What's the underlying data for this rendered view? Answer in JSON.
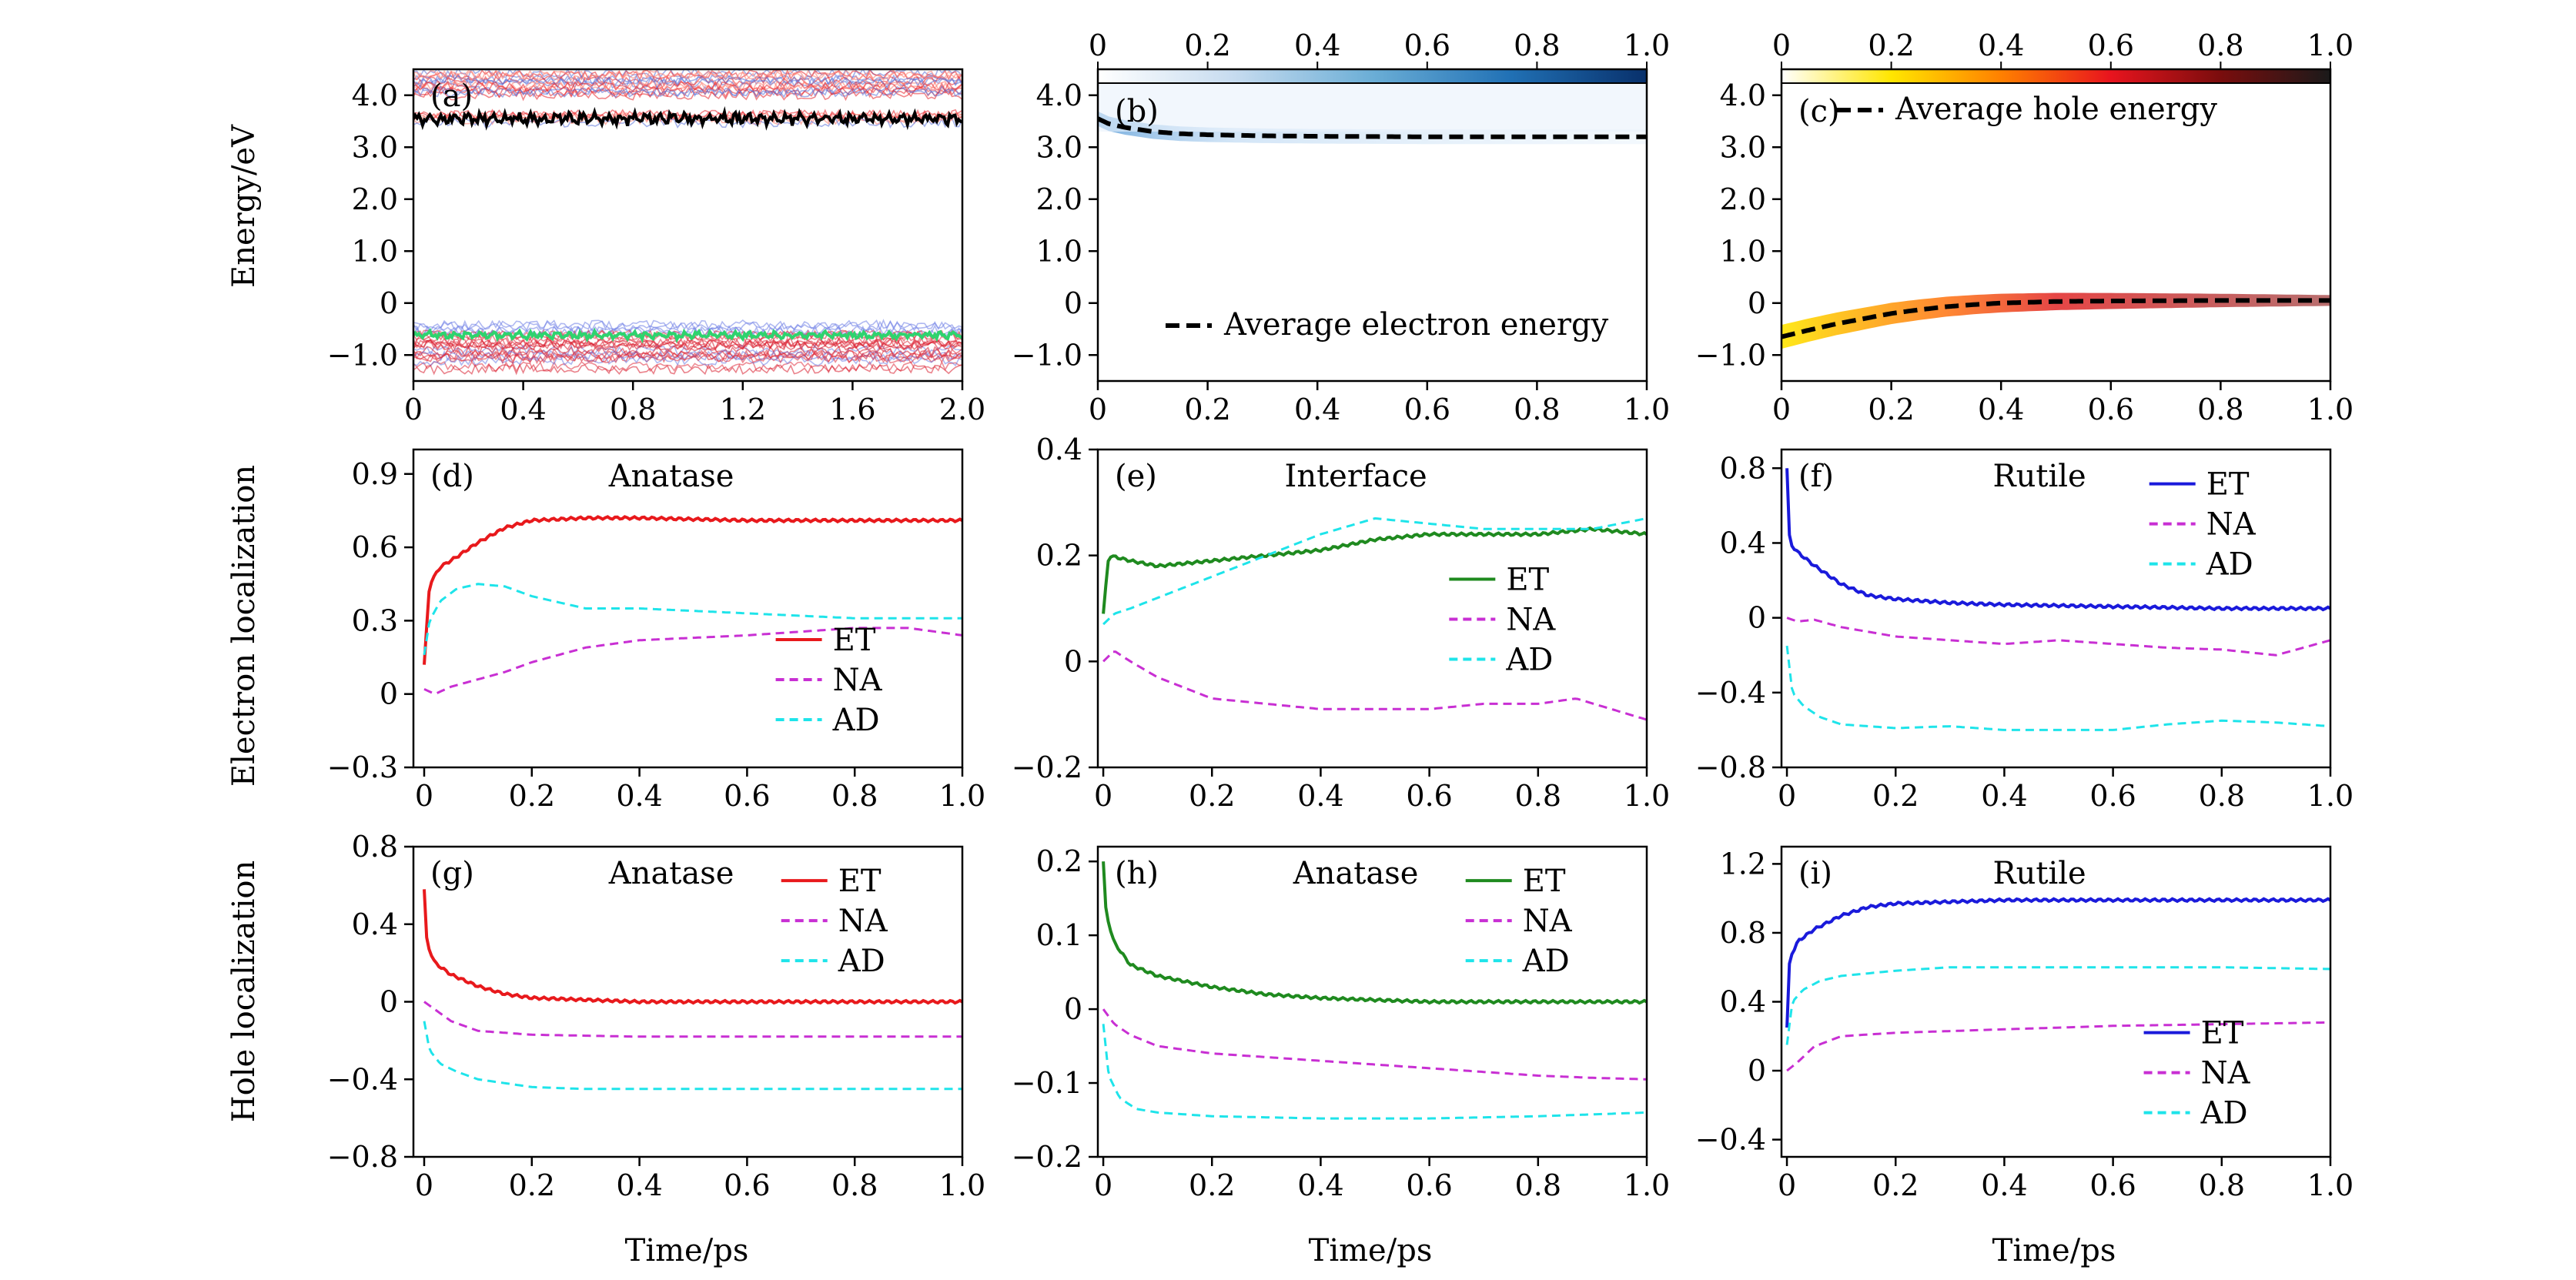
{
  "figure": {
    "y_labels": [
      "Energy/eV",
      "Electron localization",
      "Hole localization"
    ],
    "x_label": "Time/ps"
  },
  "chart_data": [
    {
      "id": "a",
      "type": "line",
      "panel_label": "(a)",
      "xlim": [
        0,
        2.0
      ],
      "ylim": [
        -1.5,
        4.5
      ],
      "xticks": [
        0,
        0.4,
        0.8,
        1.2,
        1.6,
        2.0
      ],
      "xtick_labels": [
        "0",
        "0.4",
        "0.8",
        "1.2",
        "1.6",
        "2.0"
      ],
      "yticks": [
        -1.0,
        0,
        1.0,
        2.0,
        3.0,
        4.0
      ],
      "ytick_labels": [
        "−1.0",
        "0",
        "1.0",
        "2.0",
        "3.0",
        "4.0"
      ],
      "band_groups": [
        {
          "name": "conduction states",
          "center": 3.95,
          "spread": 0.5,
          "colors": [
            "#e8242c",
            "#ff7a6e",
            "#5b73d9"
          ]
        },
        {
          "name": "valence states",
          "center": -0.9,
          "spread": 0.55,
          "colors": [
            "#d81e2e",
            "#6f7fe6",
            "#e03040"
          ]
        }
      ],
      "series": [
        {
          "role": "lumo",
          "color": "#000000",
          "mean": 3.55,
          "amplitude": 0.15
        },
        {
          "role": "homo",
          "color": "#2ed36e",
          "mean": -0.62,
          "amplitude": 0.09
        }
      ]
    },
    {
      "id": "b",
      "type": "line",
      "panel_label": "(b)",
      "xlim": [
        0,
        1.0
      ],
      "ylim": [
        -1.5,
        4.5
      ],
      "xticks": [
        0,
        0.2,
        0.4,
        0.6,
        0.8,
        1.0
      ],
      "xtick_labels": [
        "0",
        "0.2",
        "0.4",
        "0.6",
        "0.8",
        "1.0"
      ],
      "yticks": [
        -1.0,
        0,
        1.0,
        2.0,
        3.0,
        4.0
      ],
      "ytick_labels": [
        "−1.0",
        "0",
        "1.0",
        "2.0",
        "3.0",
        "4.0"
      ],
      "colorbar": {
        "ticks": [
          0,
          0.2,
          0.4,
          0.6,
          0.8,
          1.0
        ],
        "tick_labels": [
          "0",
          "0.2",
          "0.4",
          "0.6",
          "0.8",
          "1.0"
        ],
        "colors": [
          "#ffffff",
          "#c6dbef",
          "#6baed6",
          "#2171b5",
          "#08306b"
        ]
      },
      "density_color": "#7fb3df",
      "legend": {
        "position": "lower-right",
        "entries": [
          {
            "label": "Average electron energy",
            "color": "#000000",
            "dash": true
          }
        ]
      },
      "series": [
        {
          "name": "Average electron energy",
          "color": "#000000",
          "dash": true,
          "x": [
            0,
            0.02,
            0.05,
            0.1,
            0.15,
            0.2,
            0.3,
            0.4,
            0.6,
            0.8,
            1.0
          ],
          "y": [
            3.55,
            3.45,
            3.38,
            3.3,
            3.26,
            3.24,
            3.22,
            3.21,
            3.2,
            3.2,
            3.2
          ]
        }
      ]
    },
    {
      "id": "c",
      "type": "line",
      "panel_label": "(c)",
      "xlim": [
        0,
        1.0
      ],
      "ylim": [
        -1.5,
        4.5
      ],
      "xticks": [
        0,
        0.2,
        0.4,
        0.6,
        0.8,
        1.0
      ],
      "xtick_labels": [
        "0",
        "0.2",
        "0.4",
        "0.6",
        "0.8",
        "1.0"
      ],
      "yticks": [
        -1.0,
        0,
        1.0,
        2.0,
        3.0,
        4.0
      ],
      "ytick_labels": [
        "−1.0",
        "0",
        "1.0",
        "2.0",
        "3.0",
        "4.0"
      ],
      "colorbar": {
        "ticks": [
          0,
          0.2,
          0.4,
          0.6,
          0.8,
          1.0
        ],
        "tick_labels": [
          "0",
          "0.2",
          "0.4",
          "0.6",
          "0.8",
          "1.0"
        ],
        "colors": [
          "#ffffff",
          "#ffe600",
          "#ff8000",
          "#e8141e",
          "#7a0d0d",
          "#1a1a1a"
        ]
      },
      "legend": {
        "position": "upper-right",
        "entries": [
          {
            "label": "Average hole energy",
            "color": "#000000",
            "dash": true
          }
        ]
      },
      "series": [
        {
          "name": "Average hole energy",
          "color": "#000000",
          "dash": true,
          "x": [
            0,
            0.05,
            0.1,
            0.15,
            0.2,
            0.25,
            0.3,
            0.35,
            0.4,
            0.5,
            0.6,
            0.8,
            1.0
          ],
          "y": [
            -0.65,
            -0.52,
            -0.4,
            -0.3,
            -0.2,
            -0.13,
            -0.07,
            -0.03,
            0.0,
            0.03,
            0.04,
            0.05,
            0.05
          ]
        }
      ]
    },
    {
      "id": "d",
      "type": "line",
      "panel_label": "(d)",
      "title": "Anatase",
      "xlim": [
        -0.02,
        1.0
      ],
      "ylim": [
        -0.3,
        1.0
      ],
      "xticks": [
        0,
        0.2,
        0.4,
        0.6,
        0.8,
        1.0
      ],
      "xtick_labels": [
        "0",
        "0.2",
        "0.4",
        "0.6",
        "0.8",
        "1.0"
      ],
      "yticks": [
        -0.3,
        0,
        0.3,
        0.6,
        0.9
      ],
      "ytick_labels": [
        "−0.3",
        "0",
        "0.3",
        "0.6",
        "0.9"
      ],
      "legend": {
        "position": "lower-right"
      },
      "series": [
        {
          "name": "ET",
          "color": "#e8191c",
          "dash": false,
          "x": [
            0,
            0.01,
            0.03,
            0.06,
            0.1,
            0.15,
            0.2,
            0.3,
            0.4,
            0.6,
            0.8,
            1.0
          ],
          "y": [
            0.12,
            0.45,
            0.52,
            0.56,
            0.62,
            0.68,
            0.71,
            0.72,
            0.72,
            0.71,
            0.71,
            0.71
          ]
        },
        {
          "name": "NA",
          "color": "#c82fd3",
          "dash": true,
          "x": [
            0,
            0.02,
            0.05,
            0.1,
            0.15,
            0.2,
            0.3,
            0.4,
            0.6,
            0.8,
            0.9,
            1.0
          ],
          "y": [
            0.02,
            0.0,
            0.03,
            0.06,
            0.09,
            0.13,
            0.19,
            0.22,
            0.24,
            0.27,
            0.27,
            0.24
          ]
        },
        {
          "name": "AD",
          "color": "#1ee4ea",
          "dash": true,
          "x": [
            0,
            0.01,
            0.03,
            0.06,
            0.1,
            0.15,
            0.2,
            0.3,
            0.4,
            0.6,
            0.8,
            1.0
          ],
          "y": [
            0.16,
            0.3,
            0.38,
            0.43,
            0.45,
            0.44,
            0.4,
            0.35,
            0.35,
            0.33,
            0.31,
            0.31
          ]
        }
      ]
    },
    {
      "id": "e",
      "type": "line",
      "panel_label": "(e)",
      "title": "Interface",
      "xlim": [
        -0.01,
        1.0
      ],
      "ylim": [
        -0.2,
        0.4
      ],
      "xticks": [
        0,
        0.2,
        0.4,
        0.6,
        0.8,
        1.0
      ],
      "xtick_labels": [
        "0",
        "0.2",
        "0.4",
        "0.6",
        "0.8",
        "1.0"
      ],
      "yticks": [
        -0.2,
        0,
        0.2,
        0.4
      ],
      "ytick_labels": [
        "−0.2",
        "0",
        "0.2",
        "0.4"
      ],
      "legend": {
        "position": "center-right"
      },
      "series": [
        {
          "name": "ET",
          "color": "#1f8a1f",
          "dash": false,
          "x": [
            0,
            0.01,
            0.05,
            0.1,
            0.2,
            0.3,
            0.4,
            0.5,
            0.6,
            0.7,
            0.8,
            0.9,
            1.0
          ],
          "y": [
            0.09,
            0.2,
            0.19,
            0.18,
            0.19,
            0.2,
            0.21,
            0.23,
            0.24,
            0.24,
            0.24,
            0.25,
            0.24
          ]
        },
        {
          "name": "NA",
          "color": "#c82fd3",
          "dash": true,
          "x": [
            0,
            0.02,
            0.05,
            0.1,
            0.2,
            0.3,
            0.4,
            0.5,
            0.6,
            0.7,
            0.8,
            0.87,
            1.0
          ],
          "y": [
            0.0,
            0.02,
            0.0,
            -0.03,
            -0.07,
            -0.08,
            -0.09,
            -0.09,
            -0.09,
            -0.08,
            -0.08,
            -0.07,
            -0.11
          ]
        },
        {
          "name": "AD",
          "color": "#1ee4ea",
          "dash": true,
          "x": [
            0,
            0.02,
            0.05,
            0.1,
            0.2,
            0.3,
            0.4,
            0.5,
            0.6,
            0.7,
            0.8,
            0.9,
            1.0
          ],
          "y": [
            0.07,
            0.09,
            0.1,
            0.12,
            0.16,
            0.2,
            0.24,
            0.27,
            0.26,
            0.25,
            0.25,
            0.25,
            0.27
          ]
        }
      ]
    },
    {
      "id": "f",
      "type": "line",
      "panel_label": "(f)",
      "title": "Rutile",
      "xlim": [
        -0.01,
        1.0
      ],
      "ylim": [
        -0.8,
        0.9
      ],
      "xticks": [
        0,
        0.2,
        0.4,
        0.6,
        0.8,
        1.0
      ],
      "xtick_labels": [
        "0",
        "0.2",
        "0.4",
        "0.6",
        "0.8",
        "1.0"
      ],
      "yticks": [
        -0.8,
        -0.4,
        0,
        0.4,
        0.8
      ],
      "ytick_labels": [
        "−0.8",
        "−0.4",
        "0",
        "0.4",
        "0.8"
      ],
      "legend": {
        "position": "upper-right"
      },
      "series": [
        {
          "name": "ET",
          "color": "#1a1adb",
          "dash": false,
          "x": [
            0,
            0.005,
            0.02,
            0.05,
            0.1,
            0.15,
            0.2,
            0.3,
            0.4,
            0.6,
            0.8,
            1.0
          ],
          "y": [
            0.8,
            0.4,
            0.35,
            0.28,
            0.18,
            0.12,
            0.1,
            0.08,
            0.07,
            0.06,
            0.05,
            0.05
          ]
        },
        {
          "name": "NA",
          "color": "#c82fd3",
          "dash": true,
          "x": [
            0,
            0.02,
            0.05,
            0.1,
            0.2,
            0.3,
            0.4,
            0.5,
            0.6,
            0.7,
            0.8,
            0.9,
            1.0
          ],
          "y": [
            0.0,
            -0.02,
            -0.01,
            -0.05,
            -0.1,
            -0.12,
            -0.14,
            -0.12,
            -0.14,
            -0.16,
            -0.17,
            -0.2,
            -0.12
          ]
        },
        {
          "name": "AD",
          "color": "#1ee4ea",
          "dash": true,
          "x": [
            0,
            0.01,
            0.03,
            0.06,
            0.1,
            0.2,
            0.3,
            0.4,
            0.5,
            0.6,
            0.7,
            0.8,
            0.9,
            1.0
          ],
          "y": [
            -0.15,
            -0.4,
            -0.47,
            -0.53,
            -0.57,
            -0.59,
            -0.58,
            -0.6,
            -0.6,
            -0.6,
            -0.57,
            -0.55,
            -0.56,
            -0.58
          ]
        }
      ]
    },
    {
      "id": "g",
      "type": "line",
      "panel_label": "(g)",
      "title": "Anatase",
      "xlim": [
        -0.02,
        1.0
      ],
      "ylim": [
        -0.8,
        0.8
      ],
      "xticks": [
        0,
        0.2,
        0.4,
        0.6,
        0.8,
        1.0
      ],
      "xtick_labels": [
        "0",
        "0.2",
        "0.4",
        "0.6",
        "0.8",
        "1.0"
      ],
      "yticks": [
        -0.8,
        -0.4,
        0,
        0.4,
        0.8
      ],
      "ytick_labels": [
        "−0.8",
        "−0.4",
        "0",
        "0.4",
        "0.8"
      ],
      "legend": {
        "position": "upper-right"
      },
      "series": [
        {
          "name": "ET",
          "color": "#e8191c",
          "dash": false,
          "x": [
            0,
            0.005,
            0.02,
            0.05,
            0.1,
            0.15,
            0.2,
            0.3,
            0.4,
            0.6,
            0.8,
            1.0
          ],
          "y": [
            0.58,
            0.3,
            0.2,
            0.14,
            0.08,
            0.04,
            0.02,
            0.01,
            0.0,
            0.0,
            0.0,
            0.0
          ]
        },
        {
          "name": "NA",
          "color": "#c82fd3",
          "dash": true,
          "x": [
            0,
            0.02,
            0.05,
            0.1,
            0.2,
            0.4,
            0.6,
            0.8,
            1.0
          ],
          "y": [
            0.0,
            -0.04,
            -0.1,
            -0.15,
            -0.17,
            -0.18,
            -0.18,
            -0.18,
            -0.18
          ]
        },
        {
          "name": "AD",
          "color": "#1ee4ea",
          "dash": true,
          "x": [
            0,
            0.01,
            0.03,
            0.06,
            0.1,
            0.2,
            0.3,
            0.4,
            0.6,
            0.8,
            1.0
          ],
          "y": [
            -0.1,
            -0.25,
            -0.32,
            -0.36,
            -0.4,
            -0.44,
            -0.45,
            -0.45,
            -0.45,
            -0.45,
            -0.45
          ]
        }
      ]
    },
    {
      "id": "h",
      "type": "line",
      "panel_label": "(h)",
      "title": "Anatase",
      "xlim": [
        -0.01,
        1.0
      ],
      "ylim": [
        -0.2,
        0.22
      ],
      "xticks": [
        0,
        0.2,
        0.4,
        0.6,
        0.8,
        1.0
      ],
      "xtick_labels": [
        "0",
        "0.2",
        "0.4",
        "0.6",
        "0.8",
        "1.0"
      ],
      "yticks": [
        -0.2,
        -0.1,
        0,
        0.1,
        0.2
      ],
      "ytick_labels": [
        "−0.2",
        "−0.1",
        "0",
        "0.1",
        "0.2"
      ],
      "legend": {
        "position": "upper-right"
      },
      "series": [
        {
          "name": "ET",
          "color": "#1f8a1f",
          "dash": false,
          "x": [
            0,
            0.005,
            0.02,
            0.05,
            0.1,
            0.2,
            0.3,
            0.4,
            0.6,
            0.8,
            1.0
          ],
          "y": [
            0.2,
            0.13,
            0.09,
            0.06,
            0.045,
            0.03,
            0.02,
            0.015,
            0.01,
            0.01,
            0.01
          ]
        },
        {
          "name": "NA",
          "color": "#c82fd3",
          "dash": true,
          "x": [
            0,
            0.02,
            0.05,
            0.1,
            0.2,
            0.3,
            0.4,
            0.5,
            0.6,
            0.7,
            0.8,
            0.9,
            1.0
          ],
          "y": [
            0.0,
            -0.02,
            -0.035,
            -0.05,
            -0.06,
            -0.065,
            -0.07,
            -0.075,
            -0.08,
            -0.085,
            -0.09,
            -0.093,
            -0.095
          ]
        },
        {
          "name": "AD",
          "color": "#1ee4ea",
          "dash": true,
          "x": [
            0,
            0.01,
            0.03,
            0.06,
            0.1,
            0.2,
            0.4,
            0.6,
            0.8,
            1.0
          ],
          "y": [
            -0.02,
            -0.09,
            -0.12,
            -0.135,
            -0.14,
            -0.145,
            -0.148,
            -0.148,
            -0.145,
            -0.14
          ]
        }
      ]
    },
    {
      "id": "i",
      "type": "line",
      "panel_label": "(i)",
      "title": "Rutile",
      "xlim": [
        -0.01,
        1.0
      ],
      "ylim": [
        -0.5,
        1.3
      ],
      "xticks": [
        0,
        0.2,
        0.4,
        0.6,
        0.8,
        1.0
      ],
      "xtick_labels": [
        "0",
        "0.2",
        "0.4",
        "0.6",
        "0.8",
        "1.0"
      ],
      "yticks": [
        -0.4,
        0,
        0.4,
        0.8,
        1.2
      ],
      "ytick_labels": [
        "−0.4",
        "0",
        "0.4",
        "0.8",
        "1.2"
      ],
      "legend": {
        "position": "lower-right"
      },
      "series": [
        {
          "name": "ET",
          "color": "#1a1adb",
          "dash": false,
          "x": [
            0,
            0.005,
            0.02,
            0.05,
            0.1,
            0.15,
            0.2,
            0.3,
            0.4,
            0.6,
            0.8,
            1.0
          ],
          "y": [
            0.25,
            0.65,
            0.75,
            0.82,
            0.9,
            0.95,
            0.97,
            0.98,
            0.99,
            0.99,
            0.99,
            0.99
          ]
        },
        {
          "name": "NA",
          "color": "#c82fd3",
          "dash": true,
          "x": [
            0,
            0.02,
            0.05,
            0.1,
            0.2,
            0.4,
            0.6,
            0.8,
            1.0
          ],
          "y": [
            0.0,
            0.05,
            0.14,
            0.2,
            0.22,
            0.24,
            0.26,
            0.27,
            0.28
          ]
        },
        {
          "name": "AD",
          "color": "#1ee4ea",
          "dash": true,
          "x": [
            0,
            0.01,
            0.03,
            0.06,
            0.1,
            0.2,
            0.3,
            0.4,
            0.6,
            0.8,
            1.0
          ],
          "y": [
            0.15,
            0.4,
            0.47,
            0.52,
            0.55,
            0.58,
            0.6,
            0.6,
            0.6,
            0.6,
            0.59
          ]
        }
      ]
    }
  ]
}
